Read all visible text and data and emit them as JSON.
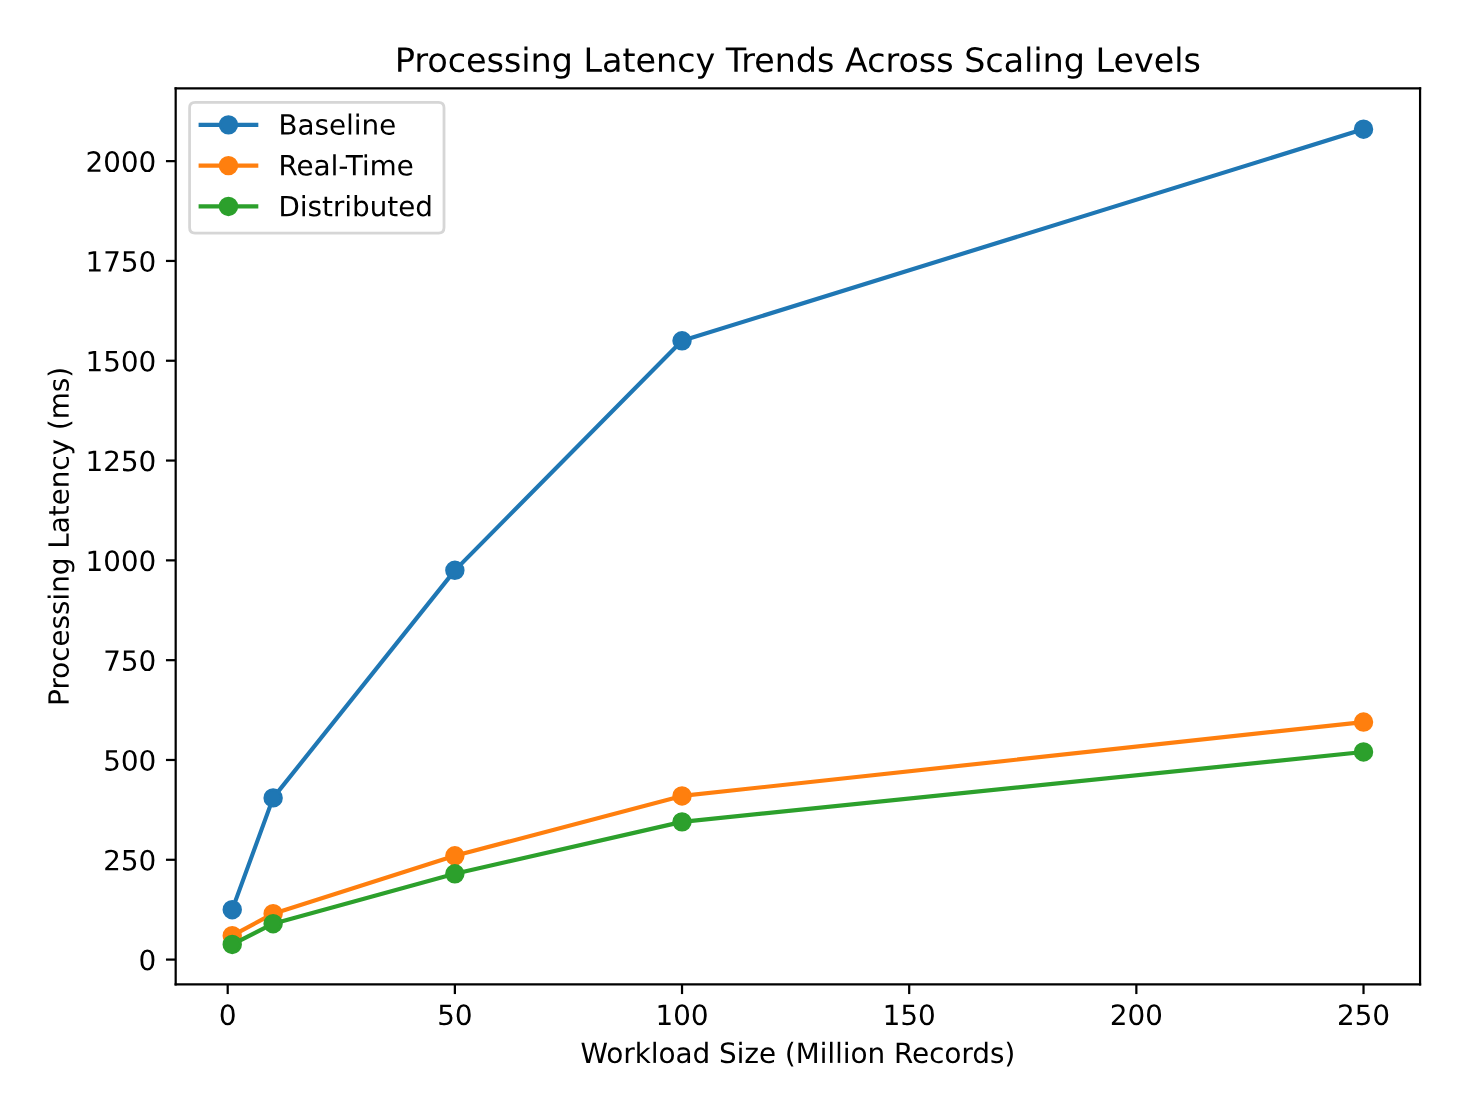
{
  "chart_data": {
    "type": "line",
    "title": "Processing Latency Trends Across Scaling Levels",
    "xlabel": "Workload Size (Million Records)",
    "ylabel": "Processing Latency (ms)",
    "x": [
      1,
      10,
      50,
      100,
      250
    ],
    "series": [
      {
        "name": "Baseline",
        "color": "#1f77b4",
        "values": [
          125,
          405,
          975,
          1550,
          2080
        ]
      },
      {
        "name": "Real-Time",
        "color": "#ff7f0e",
        "values": [
          60,
          115,
          260,
          410,
          595
        ]
      },
      {
        "name": "Distributed",
        "color": "#2ca02c",
        "values": [
          38,
          90,
          215,
          345,
          520
        ]
      }
    ],
    "xlim": [
      -11.45,
      262.45
    ],
    "ylim": [
      -62,
      2182
    ],
    "xticks": [
      0,
      50,
      100,
      150,
      200,
      250
    ],
    "yticks": [
      0,
      250,
      500,
      750,
      1000,
      1250,
      1500,
      1750,
      2000
    ],
    "marker": "circle",
    "line_style": "solid",
    "legend": "top left",
    "grid": false
  }
}
